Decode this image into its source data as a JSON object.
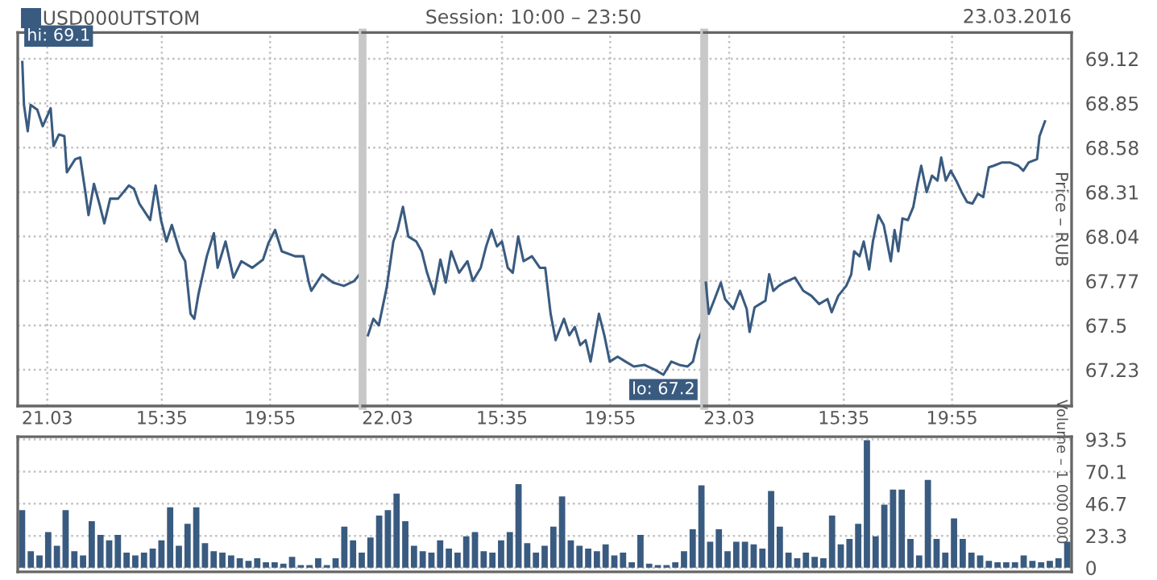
{
  "chart_data": [
    {
      "type": "line",
      "legend": "top left",
      "grid": true,
      "marker": "none",
      "line_style": "solid",
      "tick_labels": "x",
      "xlim": [
        "2016-03-21T09:49",
        "2016-03-21T23:37"
      ],
      "ylim": [
        67.01,
        69.28
      ],
      "xticks": [
        {
          "value": "2016-03-21T11:00",
          "label": "21.03"
        },
        {
          "value": "2016-03-21T15:35",
          "label": "15:35"
        },
        {
          "value": "2016-03-21T19:55",
          "label": "19:55"
        }
      ],
      "yticks": [
        67.23,
        67.5,
        67.77,
        68.04,
        68.31,
        68.58,
        68.85,
        69.12
      ],
      "annotations": [
        {
          "text": "hi: 69.1",
          "x": "2016-03-21T10:00",
          "y": 69.1
        }
      ],
      "series": [
        {
          "name": "USD000UTSTOM",
          "color": "#3a5b80",
          "x": [
            "2016-03-21T10:00",
            "2016-03-21T10:04",
            "2016-03-21T10:13",
            "2016-03-21T10:20",
            "2016-03-21T10:36",
            "2016-03-21T10:49",
            "2016-03-21T11:08",
            "2016-03-21T11:15",
            "2016-03-21T11:28",
            "2016-03-21T11:41",
            "2016-03-21T11:47",
            "2016-03-21T12:07",
            "2016-03-21T12:19",
            "2016-03-21T12:32",
            "2016-03-21T12:39",
            "2016-03-21T12:52",
            "2016-03-21T13:05",
            "2016-03-21T13:17",
            "2016-03-21T13:31",
            "2016-03-21T13:50",
            "2016-03-21T14:16",
            "2016-03-21T14:28",
            "2016-03-21T14:41",
            "2016-03-21T15:07",
            "2016-03-21T15:20",
            "2016-03-21T15:33",
            "2016-03-21T15:46",
            "2016-03-21T15:59",
            "2016-03-21T16:18",
            "2016-03-21T16:31",
            "2016-03-21T16:44",
            "2016-03-21T16:53",
            "2016-03-21T17:03",
            "2016-03-21T17:23",
            "2016-03-21T17:40",
            "2016-03-21T17:49",
            "2016-03-21T18:08",
            "2016-03-21T18:27",
            "2016-03-21T18:46",
            "2016-03-21T19:12",
            "2016-03-21T19:38",
            "2016-03-21T19:51",
            "2016-03-21T20:07",
            "2016-03-21T20:23",
            "2016-03-21T20:55",
            "2016-03-21T21:15",
            "2016-03-21T21:28",
            "2016-03-21T21:34",
            "2016-03-21T22:00",
            "2016-03-21T22:26",
            "2016-03-21T22:52",
            "2016-03-21T23:17",
            "2016-03-21T23:33",
            "2016-03-21T23:36"
          ],
          "values": [
            69.1,
            68.84,
            68.68,
            68.84,
            68.81,
            68.71,
            68.82,
            68.59,
            68.66,
            68.65,
            68.43,
            68.51,
            68.52,
            68.3,
            68.17,
            68.36,
            68.24,
            68.12,
            68.27,
            68.27,
            68.35,
            68.33,
            68.24,
            68.14,
            68.35,
            68.14,
            68.01,
            68.11,
            67.95,
            67.89,
            67.57,
            67.54,
            67.69,
            67.92,
            68.06,
            67.85,
            68.01,
            67.79,
            67.89,
            67.85,
            67.9,
            68.0,
            68.08,
            67.95,
            67.92,
            67.92,
            67.76,
            67.71,
            67.81,
            67.76,
            67.74,
            67.77,
            67.82,
            67.76
          ]
        }
      ]
    },
    {
      "type": "line",
      "title": "Session: 10:00 – 23:50",
      "grid": true,
      "marker": "none",
      "line_style": "solid",
      "tick_labels": "x",
      "xlim": [
        "2016-03-22T10:00",
        "2016-03-22T23:41"
      ],
      "ylim": [
        67.01,
        69.28
      ],
      "xticks": [
        {
          "value": "2016-03-22T11:00",
          "label": "22.03"
        },
        {
          "value": "2016-03-22T15:35",
          "label": "15:35"
        },
        {
          "value": "2016-03-22T19:55",
          "label": "19:55"
        }
      ],
      "yticks": [
        67.23,
        67.5,
        67.77,
        68.04,
        68.31,
        68.58,
        68.85,
        69.12
      ],
      "annotations": [
        {
          "text": "lo: 67.2",
          "x": "2016-03-22T22:03",
          "y": 67.2
        }
      ],
      "series": [
        {
          "color": "#3a5b80",
          "x": [
            "2016-03-22T10:13",
            "2016-03-22T10:26",
            "2016-03-22T10:39",
            "2016-03-22T10:58",
            "2016-03-22T11:14",
            "2016-03-22T11:24",
            "2016-03-22T11:37",
            "2016-03-22T11:50",
            "2016-03-22T12:09",
            "2016-03-22T12:22",
            "2016-03-22T12:35",
            "2016-03-22T12:52",
            "2016-03-22T13:07",
            "2016-03-22T13:20",
            "2016-03-22T13:33",
            "2016-03-22T13:52",
            "2016-03-22T14:12",
            "2016-03-22T14:25",
            "2016-03-22T14:44",
            "2016-03-22T14:57",
            "2016-03-22T15:10",
            "2016-03-22T15:23",
            "2016-03-22T15:35",
            "2016-03-22T15:49",
            "2016-03-22T16:01",
            "2016-03-22T16:14",
            "2016-03-22T16:27",
            "2016-03-22T16:47",
            "2016-03-22T17:06",
            "2016-03-22T17:19",
            "2016-03-22T17:32",
            "2016-03-22T17:44",
            "2016-03-22T18:04",
            "2016-03-22T18:17",
            "2016-03-22T18:30",
            "2016-03-22T18:43",
            "2016-03-22T18:56",
            "2016-03-22T19:08",
            "2016-03-22T19:28",
            "2016-03-22T19:41",
            "2016-03-22T19:54",
            "2016-03-22T20:13",
            "2016-03-22T20:32",
            "2016-03-22T20:52",
            "2016-03-22T21:17",
            "2016-03-22T21:43",
            "2016-03-22T22:03",
            "2016-03-22T22:22",
            "2016-03-22T22:41",
            "2016-03-22T23:01",
            "2016-03-22T23:14",
            "2016-03-22T23:26",
            "2016-03-22T23:40"
          ],
          "values": [
            67.44,
            67.54,
            67.5,
            67.73,
            68.01,
            68.08,
            68.22,
            68.04,
            68.01,
            67.95,
            67.82,
            67.69,
            67.9,
            67.76,
            67.95,
            67.82,
            67.89,
            67.77,
            67.85,
            67.98,
            68.08,
            67.98,
            68.01,
            67.85,
            67.82,
            68.04,
            67.89,
            67.92,
            67.85,
            67.85,
            67.57,
            67.41,
            67.54,
            67.44,
            67.49,
            67.38,
            67.41,
            67.28,
            67.57,
            67.44,
            67.28,
            67.31,
            67.28,
            67.25,
            67.26,
            67.23,
            67.2,
            67.28,
            67.26,
            67.25,
            67.28,
            67.41,
            67.49
          ]
        }
      ]
    },
    {
      "type": "line",
      "ylabel": "Price – RUB",
      "grid": true,
      "marker": "none",
      "line_style": "solid",
      "xlim": [
        "2016-03-23T10:00",
        "2016-03-24T00:42"
      ],
      "ylim": [
        67.01,
        69.28
      ],
      "xticks": [
        {
          "value": "2016-03-23T11:00",
          "label": "23.03"
        },
        {
          "value": "2016-03-23T15:35",
          "label": "15:35"
        },
        {
          "value": "2016-03-23T19:55",
          "label": "19:55"
        }
      ],
      "yticks": [
        67.23,
        67.5,
        67.77,
        68.04,
        68.31,
        68.58,
        68.85,
        69.12
      ],
      "annotations": [
        "23.03.2016"
      ],
      "series": [
        {
          "color": "#3a5b80",
          "x": [
            "2016-03-23T10:04",
            "2016-03-23T10:11",
            "2016-03-23T10:25",
            "2016-03-23T10:40",
            "2016-03-23T10:50",
            "2016-03-23T11:10",
            "2016-03-23T11:26",
            "2016-03-23T11:42",
            "2016-03-23T11:49",
            "2016-03-23T12:01",
            "2016-03-23T12:14",
            "2016-03-23T12:27",
            "2016-03-23T12:36",
            "2016-03-23T12:46",
            "2016-03-23T12:59",
            "2016-03-23T13:12",
            "2016-03-23T13:38",
            "2016-03-23T13:58",
            "2016-03-23T14:17",
            "2016-03-23T14:36",
            "2016-03-23T14:56",
            "2016-03-23T15:06",
            "2016-03-23T15:22",
            "2016-03-23T15:41",
            "2016-03-23T15:53",
            "2016-03-23T16:00",
            "2016-03-23T16:13",
            "2016-03-23T16:23",
            "2016-03-23T16:36",
            "2016-03-23T16:45",
            "2016-03-23T16:58",
            "2016-03-23T17:11",
            "2016-03-23T17:28",
            "2016-03-23T17:37",
            "2016-03-23T17:46",
            "2016-03-23T17:56",
            "2016-03-23T18:09",
            "2016-03-23T18:22",
            "2016-03-23T18:32",
            "2016-03-23T18:41",
            "2016-03-23T18:54",
            "2016-03-23T19:07",
            "2016-03-23T19:20",
            "2016-03-23T19:29",
            "2016-03-23T19:40",
            "2016-03-23T19:52",
            "2016-03-23T20:05",
            "2016-03-23T20:18",
            "2016-03-23T20:31",
            "2016-03-23T20:44",
            "2016-03-23T20:57",
            "2016-03-23T21:10",
            "2016-03-23T21:23",
            "2016-03-23T21:35",
            "2016-03-23T21:55",
            "2016-03-23T22:14",
            "2016-03-23T22:34",
            "2016-03-23T22:46",
            "2016-03-23T22:59",
            "2016-03-23T23:19",
            "2016-03-23T23:25",
            "2016-03-23T23:38"
          ],
          "values": [
            67.76,
            67.57,
            67.66,
            67.76,
            67.66,
            67.6,
            67.71,
            67.6,
            67.46,
            67.61,
            67.63,
            67.65,
            67.81,
            67.71,
            67.74,
            67.76,
            67.79,
            67.71,
            67.68,
            67.63,
            67.66,
            67.58,
            67.68,
            67.74,
            67.81,
            67.95,
            67.92,
            68.01,
            67.84,
            68.01,
            68.17,
            68.11,
            67.89,
            68.08,
            67.95,
            68.15,
            68.14,
            68.22,
            68.36,
            68.47,
            68.31,
            68.41,
            68.38,
            68.52,
            68.38,
            68.44,
            68.38,
            68.31,
            68.25,
            68.24,
            68.3,
            68.28,
            68.46,
            68.47,
            68.49,
            68.49,
            68.47,
            68.44,
            68.49,
            68.51,
            68.65,
            68.74
          ]
        }
      ]
    },
    {
      "type": "bar",
      "ylabel": "Volume – 1 000 000",
      "grid": true,
      "tick_labels": "y",
      "ylim": [
        -3,
        95.5
      ],
      "yticks": [
        0,
        23.3,
        46.7,
        70.1,
        93.5
      ],
      "categories": [
        null,
        null,
        null,
        null,
        null,
        null,
        null,
        null,
        null,
        null,
        null,
        null,
        null,
        null,
        null,
        null,
        null,
        null,
        null,
        null,
        null,
        null,
        null,
        null,
        null,
        null,
        null,
        null,
        null,
        null,
        null,
        null,
        null,
        null,
        null,
        null,
        null,
        null,
        null,
        null,
        null,
        null,
        null,
        null,
        null,
        null,
        null,
        null,
        null,
        null,
        null,
        null,
        null,
        null,
        null,
        null,
        null,
        null,
        null,
        null,
        null,
        null,
        null,
        null,
        null,
        null,
        null,
        null,
        null,
        null,
        null,
        null,
        null,
        null,
        null,
        null,
        null,
        null,
        null,
        null,
        null,
        null,
        null,
        null,
        null,
        null,
        null,
        null,
        null,
        null,
        null,
        null,
        null,
        null,
        null,
        null,
        null,
        null,
        null,
        null,
        null,
        null,
        null,
        null,
        null,
        null,
        null,
        null,
        null,
        null,
        null,
        null,
        null,
        null,
        null,
        null,
        null,
        null,
        null,
        null,
        null
      ],
      "series": [
        {
          "color": "#3a5b80",
          "values": [
            42,
            12,
            9,
            26,
            16,
            42,
            12,
            9,
            34,
            24,
            20,
            24,
            11,
            9,
            11,
            14,
            20,
            44,
            16,
            32,
            44,
            18,
            12,
            11,
            9,
            7,
            5,
            7,
            4,
            4,
            3,
            8,
            2,
            2,
            7,
            2,
            7,
            30,
            20,
            11,
            22,
            38,
            42,
            54,
            34,
            16,
            12,
            11,
            20,
            14,
            11,
            23,
            26,
            12,
            11,
            20,
            26,
            61,
            18,
            11,
            16,
            30,
            52,
            20,
            16,
            14,
            12,
            17,
            9,
            11,
            4,
            24,
            3,
            2,
            2,
            4,
            12,
            28,
            60,
            19,
            28,
            12,
            19,
            19,
            17,
            14,
            56,
            30,
            11,
            7,
            11,
            8,
            7,
            38,
            17,
            21,
            32,
            93,
            23,
            46,
            57,
            57,
            21,
            9,
            64,
            21,
            11,
            36,
            21,
            11,
            9,
            5,
            4,
            4,
            4,
            9,
            5,
            4,
            5,
            7,
            19
          ]
        }
      ]
    }
  ]
}
